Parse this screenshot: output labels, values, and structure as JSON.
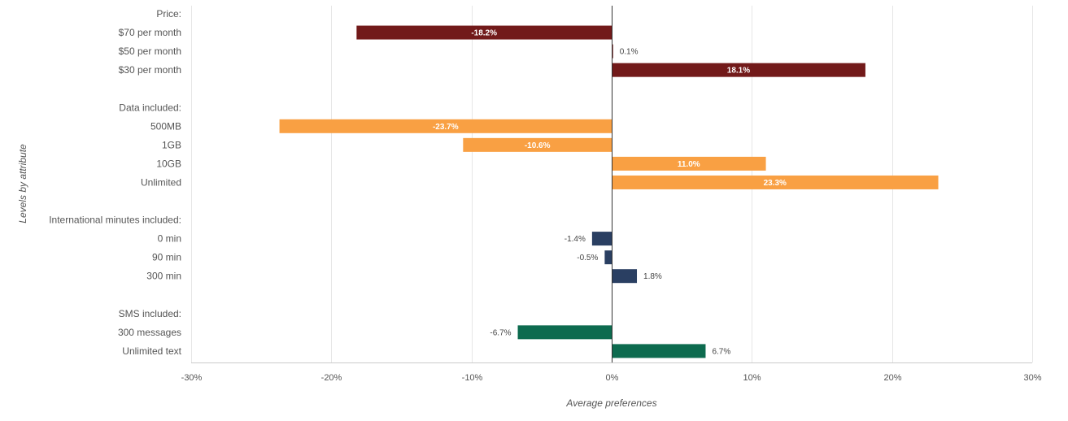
{
  "chart_data": {
    "type": "bar",
    "orientation": "horizontal",
    "xlabel": "Average preferences",
    "ylabel": "Levels by attribute",
    "xlim": [
      -30,
      30
    ],
    "xticks": [
      -30,
      -20,
      -10,
      0,
      10,
      20,
      30
    ],
    "xtick_labels": [
      "-30%",
      "-20%",
      "-10%",
      "0%",
      "10%",
      "20%",
      "30%"
    ],
    "grid": true,
    "groups": [
      {
        "name": "Price:",
        "color": "#721a1a",
        "levels": [
          {
            "label": "$70 per month",
            "value": -18.2,
            "value_label": "-18.2%"
          },
          {
            "label": "$50 per month",
            "value": 0.1,
            "value_label": "0.1%"
          },
          {
            "label": "$30 per month",
            "value": 18.1,
            "value_label": "18.1%"
          }
        ]
      },
      {
        "name": "Data included:",
        "color": "#f9a043",
        "levels": [
          {
            "label": "500MB",
            "value": -23.7,
            "value_label": "-23.7%"
          },
          {
            "label": "1GB",
            "value": -10.6,
            "value_label": "-10.6%"
          },
          {
            "label": "10GB",
            "value": 11.0,
            "value_label": "11.0%"
          },
          {
            "label": "Unlimited",
            "value": 23.3,
            "value_label": "23.3%"
          }
        ]
      },
      {
        "name": "International minutes included:",
        "color": "#2a3f62",
        "levels": [
          {
            "label": "0 min",
            "value": -1.4,
            "value_label": "-1.4%"
          },
          {
            "label": "90 min",
            "value": -0.5,
            "value_label": "-0.5%"
          },
          {
            "label": "300 min",
            "value": 1.8,
            "value_label": "1.8%"
          }
        ]
      },
      {
        "name": "SMS included:",
        "color": "#0d6b4f",
        "levels": [
          {
            "label": "300 messages",
            "value": -6.7,
            "value_label": "-6.7%"
          },
          {
            "label": "Unlimited text",
            "value": 6.7,
            "value_label": "6.7%"
          }
        ]
      }
    ]
  }
}
